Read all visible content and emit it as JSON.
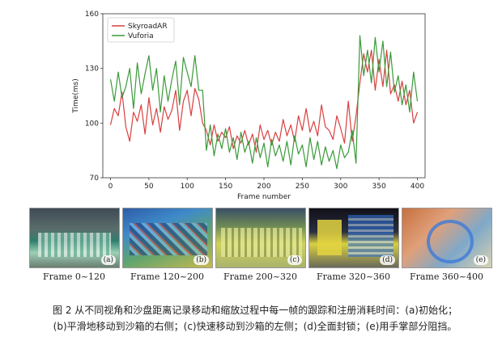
{
  "chart_data": {
    "type": "line",
    "xlabel": "Frame number",
    "ylabel": "Time(ms)",
    "xlim": [
      -10,
      410
    ],
    "ylim": [
      70,
      160
    ],
    "xticks": [
      0,
      50,
      100,
      150,
      200,
      250,
      300,
      350,
      400
    ],
    "yticks": [
      70,
      100,
      130,
      160
    ],
    "legend": "top-left",
    "series": [
      {
        "name": "SkyroadAR",
        "color": "#d94040",
        "x": [
          0,
          5,
          10,
          15,
          20,
          25,
          30,
          35,
          40,
          45,
          50,
          55,
          60,
          65,
          70,
          75,
          80,
          85,
          90,
          95,
          100,
          105,
          110,
          115,
          120,
          125,
          130,
          135,
          140,
          145,
          150,
          155,
          160,
          165,
          170,
          175,
          180,
          185,
          190,
          195,
          200,
          205,
          210,
          215,
          220,
          225,
          230,
          235,
          240,
          245,
          250,
          255,
          260,
          265,
          270,
          275,
          280,
          285,
          290,
          295,
          300,
          305,
          310,
          315,
          320,
          325,
          330,
          335,
          340,
          345,
          350,
          355,
          360,
          365,
          370,
          375,
          380,
          385,
          390,
          395,
          400
        ],
        "y": [
          99,
          108,
          104,
          117,
          98,
          90,
          106,
          101,
          110,
          94,
          114,
          99,
          108,
          95,
          109,
          102,
          107,
          118,
          96,
          112,
          118,
          104,
          119,
          113,
          100,
          96,
          88,
          99,
          90,
          95,
          92,
          98,
          86,
          93,
          89,
          96,
          88,
          94,
          84,
          99,
          91,
          96,
          88,
          95,
          90,
          102,
          93,
          99,
          90,
          104,
          96,
          108,
          95,
          101,
          93,
          110,
          98,
          96,
          91,
          104,
          97,
          89,
          112,
          90,
          104,
          122,
          138,
          128,
          140,
          118,
          135,
          120,
          140,
          116,
          121,
          112,
          123,
          110,
          118,
          100,
          106
        ]
      },
      {
        "name": "Vuforia",
        "color": "#3a9a3a",
        "x": [
          0,
          5,
          10,
          15,
          20,
          25,
          30,
          35,
          40,
          45,
          50,
          55,
          60,
          65,
          70,
          75,
          80,
          85,
          90,
          95,
          100,
          105,
          110,
          115,
          120,
          125,
          130,
          135,
          140,
          145,
          150,
          155,
          160,
          165,
          170,
          175,
          180,
          185,
          190,
          195,
          200,
          205,
          210,
          215,
          220,
          225,
          230,
          235,
          240,
          245,
          250,
          255,
          260,
          265,
          270,
          275,
          280,
          285,
          290,
          295,
          300,
          305,
          310,
          315,
          320,
          325,
          330,
          335,
          340,
          345,
          350,
          355,
          360,
          365,
          370,
          375,
          380,
          385,
          390,
          395,
          400
        ],
        "y": [
          124,
          112,
          128,
          114,
          120,
          130,
          108,
          133,
          116,
          127,
          137,
          118,
          130,
          106,
          126,
          112,
          124,
          134,
          110,
          136,
          128,
          120,
          137,
          118,
          118,
          85,
          99,
          82,
          94,
          86,
          97,
          84,
          92,
          80,
          95,
          84,
          90,
          78,
          92,
          81,
          89,
          76,
          91,
          82,
          88,
          79,
          90,
          77,
          93,
          83,
          88,
          76,
          92,
          80,
          90,
          77,
          87,
          79,
          85,
          75,
          88,
          81,
          84,
          96,
          78,
          148,
          126,
          140,
          122,
          147,
          128,
          145,
          120,
          139,
          117,
          126,
          110,
          121,
          106,
          128,
          112
        ]
      }
    ]
  },
  "thumbnails": [
    {
      "tag": "(a)",
      "label": "Frame 0~120"
    },
    {
      "tag": "(b)",
      "label": "Frame 120~200"
    },
    {
      "tag": "(c)",
      "label": "Frame 200~320"
    },
    {
      "tag": "(d)",
      "label": "Frame 320~360"
    },
    {
      "tag": "(e)",
      "label": "Frame 360~400"
    }
  ],
  "caption": {
    "line1": "图 2 从不同视角和沙盘距离记录移动和缩放过程中每一帧的跟踪和注册消耗时间：(a)初始化；",
    "line2": "(b)平滑地移动到沙箱的右侧；(c)快速移动到沙箱的左侧；(d)全面封锁；(e)用手掌部分阻挡。"
  }
}
